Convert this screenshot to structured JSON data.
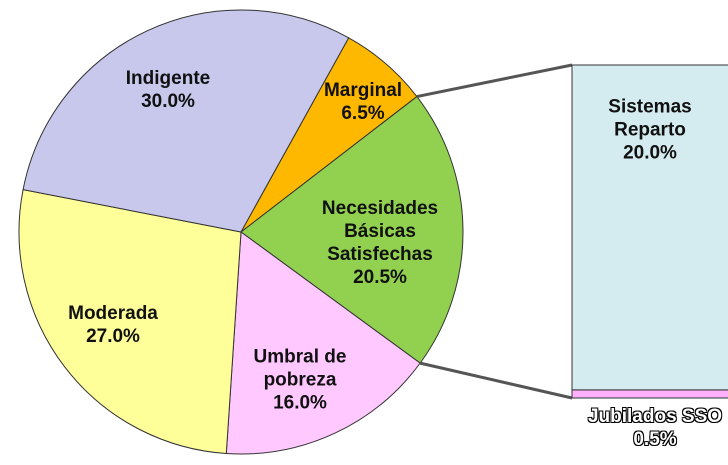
{
  "chart_data": {
    "type": "pie",
    "categories": [
      "Marginal",
      "Necesidades Básicas Satisfechas",
      "Umbral de pobreza",
      "Moderada",
      "Indigente"
    ],
    "values": [
      6.5,
      20.5,
      16.0,
      27.0,
      30.0
    ],
    "value_labels": [
      "6.5%",
      "20.5%",
      "16.0%",
      "27.0%",
      "30.0%"
    ],
    "colors": [
      "#ffb800",
      "#92d050",
      "#ffc8ff",
      "#ffff99",
      "#c8c8ec"
    ],
    "breakdown": {
      "categories": [
        "Sistemas Reparto",
        "Jubilados SSO"
      ],
      "values": [
        20.0,
        0.5
      ],
      "value_labels": [
        "20.0%",
        "0.5%"
      ],
      "colors": [
        "#d4ecef",
        "#ffb0ff"
      ]
    }
  }
}
